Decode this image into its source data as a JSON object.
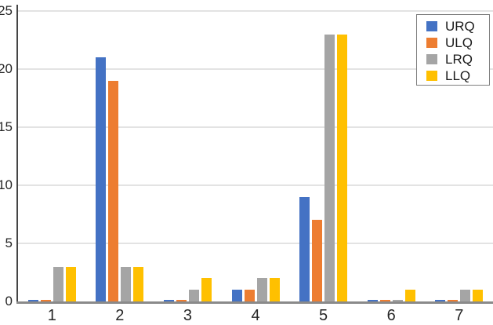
{
  "chart_data": {
    "type": "bar",
    "title": "",
    "xlabel": "",
    "ylabel": "",
    "categories": [
      "1",
      "2",
      "3",
      "4",
      "5",
      "6",
      "7"
    ],
    "series": [
      {
        "name": "URQ",
        "color": "#4472C4",
        "values": [
          0,
          21,
          0,
          1,
          9,
          0,
          0
        ]
      },
      {
        "name": "ULQ",
        "color": "#ED7D31",
        "values": [
          0,
          19,
          0,
          1,
          7,
          0,
          0
        ]
      },
      {
        "name": "LRQ",
        "color": "#A5A5A5",
        "values": [
          3,
          3,
          1,
          2,
          23,
          0,
          1
        ]
      },
      {
        "name": "LLQ",
        "color": "#FFC000",
        "values": [
          3,
          3,
          2,
          2,
          23,
          1,
          1
        ]
      }
    ],
    "ylim": [
      0,
      25
    ],
    "yticks": [
      0,
      5,
      10,
      15,
      20,
      25
    ],
    "grid": true,
    "zero_bars_rendered_as_slivers": true,
    "legend": {
      "position": "top-right",
      "entries": [
        "URQ",
        "ULQ",
        "LRQ",
        "LLQ"
      ]
    }
  },
  "style": {
    "background": "#FFFFFF",
    "gridline_color": "#E3E3E3",
    "baseline_color": "#8A8A8A",
    "axis_line_color": "#454545",
    "text_color": "#262626",
    "legend_border_color": "#7F7F7F"
  }
}
